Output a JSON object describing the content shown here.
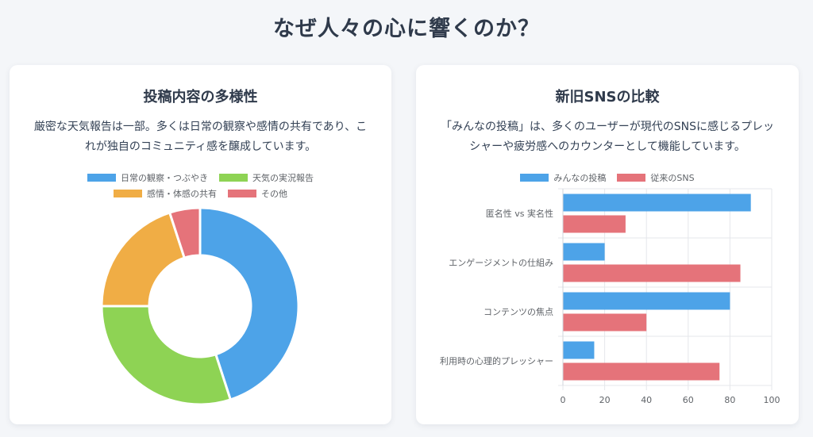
{
  "page": {
    "title": "なぜ人々の心に響くのか？"
  },
  "left_card": {
    "title": "投稿内容の多様性",
    "description": "厳密な天気報告は一部。多くは日常の観察や感情の共有であり、これが独自のコミュニティ感を醸成しています。"
  },
  "right_card": {
    "title": "新旧SNSの比較",
    "description": "「みんなの投稿」は、多くのユーザーが現代のSNSに感じるプレッシャーや疲労感へのカウンターとして機能しています。"
  },
  "colors": {
    "blue": "#4da3e8",
    "green": "#8ed354",
    "orange": "#f0ad45",
    "red": "#e5737a",
    "grid": "#e5e7eb",
    "axis_text": "#5f6368"
  },
  "chart_data": [
    {
      "type": "doughnut",
      "categories": [
        "日常の観察・つぶやき",
        "天気の実況報告",
        "感情・体感の共有",
        "その他"
      ],
      "values": [
        45,
        30,
        20,
        5
      ],
      "colors": [
        "#4da3e8",
        "#8ed354",
        "#f0ad45",
        "#e5737a"
      ],
      "legend": "top"
    },
    {
      "type": "bar",
      "orientation": "horizontal",
      "categories": [
        "匿名性 vs 実名性",
        "エンゲージメントの仕組み",
        "コンテンツの焦点",
        "利用時の心理的プレッシャー"
      ],
      "series": [
        {
          "name": "みんなの投稿",
          "color": "#4da3e8",
          "values": [
            90,
            20,
            80,
            15
          ]
        },
        {
          "name": "従来のSNS",
          "color": "#e5737a",
          "values": [
            30,
            85,
            40,
            75
          ]
        }
      ],
      "xlim": [
        0,
        100
      ],
      "xticks": [
        0,
        20,
        40,
        60,
        80,
        100
      ],
      "legend": "top",
      "grid": true
    }
  ]
}
